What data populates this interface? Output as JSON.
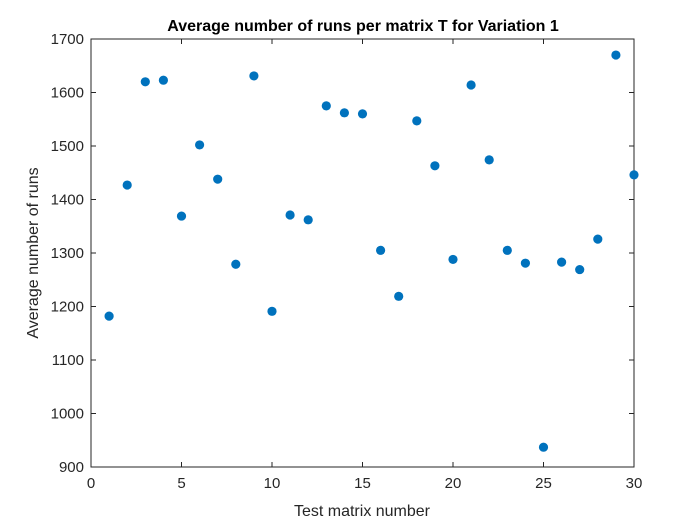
{
  "chart_data": {
    "type": "scatter",
    "title": "Average number of runs per matrix T for Variation 1",
    "xlabel": "Test matrix number",
    "ylabel": "Average number of runs",
    "xlim": [
      0,
      30
    ],
    "ylim": [
      900,
      1700
    ],
    "xticks": [
      0,
      5,
      10,
      15,
      20,
      25,
      30
    ],
    "yticks": [
      900,
      1000,
      1100,
      1200,
      1300,
      1400,
      1500,
      1600,
      1700
    ],
    "grid": false,
    "marker_color": "#0072BD",
    "points": [
      {
        "x": 1,
        "y": 1182
      },
      {
        "x": 2,
        "y": 1427
      },
      {
        "x": 3,
        "y": 1620
      },
      {
        "x": 4,
        "y": 1623
      },
      {
        "x": 5,
        "y": 1369
      },
      {
        "x": 6,
        "y": 1502
      },
      {
        "x": 7,
        "y": 1438
      },
      {
        "x": 8,
        "y": 1279
      },
      {
        "x": 9,
        "y": 1631
      },
      {
        "x": 10,
        "y": 1191
      },
      {
        "x": 11,
        "y": 1371
      },
      {
        "x": 12,
        "y": 1362
      },
      {
        "x": 13,
        "y": 1575
      },
      {
        "x": 14,
        "y": 1562
      },
      {
        "x": 15,
        "y": 1560
      },
      {
        "x": 16,
        "y": 1305
      },
      {
        "x": 17,
        "y": 1219
      },
      {
        "x": 18,
        "y": 1547
      },
      {
        "x": 19,
        "y": 1463
      },
      {
        "x": 20,
        "y": 1288
      },
      {
        "x": 21,
        "y": 1614
      },
      {
        "x": 22,
        "y": 1474
      },
      {
        "x": 23,
        "y": 1305
      },
      {
        "x": 24,
        "y": 1281
      },
      {
        "x": 25,
        "y": 937
      },
      {
        "x": 26,
        "y": 1283
      },
      {
        "x": 27,
        "y": 1269
      },
      {
        "x": 28,
        "y": 1326
      },
      {
        "x": 29,
        "y": 1670
      },
      {
        "x": 30,
        "y": 1446
      }
    ]
  }
}
